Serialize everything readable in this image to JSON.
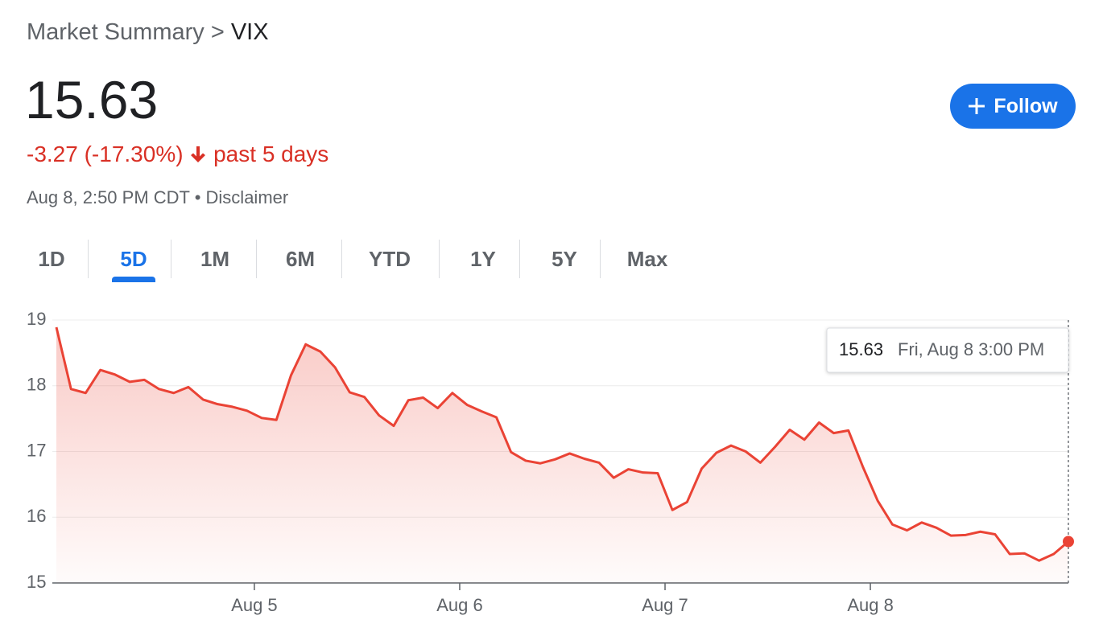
{
  "header": {
    "breadcrumb": "Market Summary",
    "separator": ">",
    "symbol": "VIX",
    "price": "15.63",
    "change": "-3.27 (-17.30%)",
    "period": "past 5 days",
    "timestamp": "Aug 8, 2:50 PM CDT",
    "bullet": "•",
    "disclaimer": "Disclaimer",
    "follow": "Follow"
  },
  "tabs": {
    "items": [
      "1D",
      "5D",
      "1M",
      "6M",
      "YTD",
      "1Y",
      "5Y",
      "Max"
    ],
    "selected": "5D"
  },
  "chart_data": {
    "type": "line",
    "categories": [
      null,
      null,
      null,
      null,
      null,
      null,
      null,
      null,
      null,
      null,
      null,
      null,
      null,
      null,
      "Aug 5",
      null,
      null,
      null,
      null,
      null,
      null,
      null,
      null,
      null,
      null,
      null,
      null,
      null,
      "Aug 6",
      null,
      null,
      null,
      null,
      null,
      null,
      null,
      null,
      null,
      null,
      null,
      null,
      null,
      "Aug 7",
      null,
      null,
      null,
      null,
      null,
      null,
      null,
      null,
      null,
      null,
      null,
      null,
      null,
      "Aug 8",
      null,
      null,
      null,
      null,
      null,
      null,
      null,
      null,
      null,
      null,
      null,
      null,
      null
    ],
    "series": [
      {
        "color": "#ea4335",
        "values": [
          18.89,
          17.95,
          17.89,
          18.24,
          18.17,
          18.06,
          18.09,
          17.95,
          17.89,
          17.98,
          17.79,
          17.72,
          17.68,
          17.62,
          17.51,
          17.48,
          18.16,
          18.63,
          18.52,
          18.28,
          17.9,
          17.83,
          17.55,
          17.39,
          17.78,
          17.82,
          17.66,
          17.89,
          17.71,
          17.61,
          17.52,
          16.99,
          16.86,
          16.82,
          16.88,
          16.97,
          16.89,
          16.83,
          16.6,
          16.73,
          16.68,
          16.67,
          16.11,
          16.23,
          16.74,
          16.98,
          17.09,
          17.0,
          16.83,
          17.07,
          17.33,
          17.18,
          17.44,
          17.28,
          17.32,
          16.76,
          16.25,
          15.89,
          15.8,
          15.92,
          15.84,
          15.72,
          15.73,
          15.78,
          15.74,
          15.44,
          15.45,
          15.34,
          15.44,
          15.63
        ]
      }
    ],
    "ylim": [
      15,
      19
    ],
    "yticks": [
      15,
      16,
      17,
      18,
      19
    ],
    "grid": true,
    "annotation": "Fri, Aug 8 3:00 PM"
  }
}
